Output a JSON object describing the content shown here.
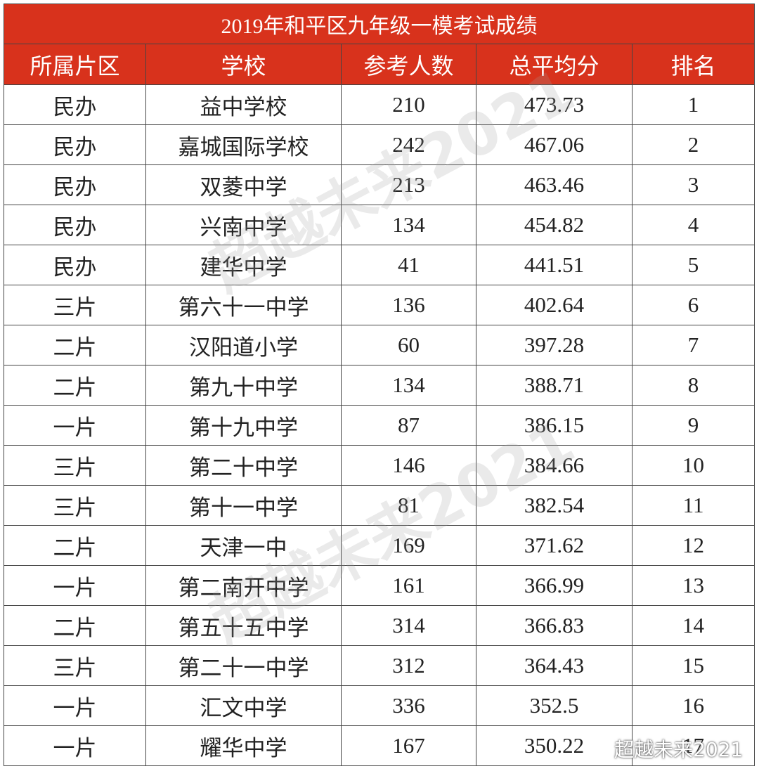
{
  "table": {
    "title": "2019年和平区九年级一模考试成绩",
    "header": [
      "所属片区",
      "学校",
      "参考人数",
      "总平均分",
      "排名"
    ],
    "rows": [
      [
        "民办",
        "益中学校",
        "210",
        "473.73",
        "1"
      ],
      [
        "民办",
        "嘉城国际学校",
        "242",
        "467.06",
        "2"
      ],
      [
        "民办",
        "双菱中学",
        "213",
        "463.46",
        "3"
      ],
      [
        "民办",
        "兴南中学",
        "134",
        "454.82",
        "4"
      ],
      [
        "民办",
        "建华中学",
        "41",
        "441.51",
        "5"
      ],
      [
        "三片",
        "第六十一中学",
        "136",
        "402.64",
        "6"
      ],
      [
        "二片",
        "汉阳道小学",
        "60",
        "397.28",
        "7"
      ],
      [
        "二片",
        "第九十中学",
        "134",
        "388.71",
        "8"
      ],
      [
        "一片",
        "第十九中学",
        "87",
        "386.15",
        "9"
      ],
      [
        "三片",
        "第二十中学",
        "146",
        "384.66",
        "10"
      ],
      [
        "三片",
        "第十一中学",
        "81",
        "382.54",
        "11"
      ],
      [
        "二片",
        "天津一中",
        "169",
        "371.62",
        "12"
      ],
      [
        "一片",
        "第二南开中学",
        "161",
        "366.99",
        "13"
      ],
      [
        "二片",
        "第五十五中学",
        "314",
        "366.83",
        "14"
      ],
      [
        "三片",
        "第二十一中学",
        "312",
        "364.43",
        "15"
      ],
      [
        "一片",
        "汇文中学",
        "336",
        "352.5",
        "16"
      ],
      [
        "一片",
        "耀华中学",
        "167",
        "350.22",
        "17"
      ]
    ]
  },
  "watermark": "超越未来2021",
  "badge": "超越未来2021"
}
